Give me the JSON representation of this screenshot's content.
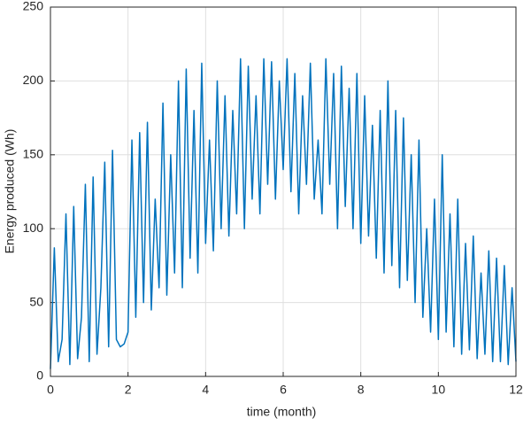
{
  "chart_data": {
    "type": "line",
    "xlabel": "time (month)",
    "ylabel": "Energy produced (Wh)",
    "xlim": [
      0,
      12
    ],
    "xticks": [
      0,
      2,
      4,
      6,
      8,
      10,
      12
    ],
    "ylim": [
      0,
      250
    ],
    "yticks": [
      0,
      50,
      100,
      150,
      200,
      250
    ],
    "grid": true,
    "x": [
      0,
      0.1,
      0.2,
      0.3,
      0.4,
      0.5,
      0.6,
      0.7,
      0.8,
      0.9,
      1,
      1.1,
      1.2,
      1.3,
      1.4,
      1.5,
      1.6,
      1.7,
      1.8,
      1.9,
      2,
      2.1,
      2.2,
      2.3,
      2.4,
      2.5,
      2.6,
      2.7,
      2.8,
      2.9,
      3,
      3.1,
      3.2,
      3.3,
      3.4,
      3.5,
      3.6,
      3.7,
      3.8,
      3.9,
      4,
      4.1,
      4.2,
      4.3,
      4.4,
      4.5,
      4.6,
      4.7,
      4.8,
      4.9,
      5,
      5.1,
      5.2,
      5.3,
      5.4,
      5.5,
      5.6,
      5.7,
      5.8,
      5.9,
      6,
      6.1,
      6.2,
      6.3,
      6.4,
      6.5,
      6.6,
      6.7,
      6.8,
      6.9,
      7,
      7.1,
      7.2,
      7.3,
      7.4,
      7.5,
      7.6,
      7.7,
      7.8,
      7.9,
      8,
      8.1,
      8.2,
      8.3,
      8.4,
      8.5,
      8.6,
      8.7,
      8.8,
      8.9,
      9,
      9.1,
      9.2,
      9.3,
      9.4,
      9.5,
      9.6,
      9.7,
      9.8,
      9.9,
      10,
      10.1,
      10.2,
      10.3,
      10.4,
      10.5,
      10.6,
      10.7,
      10.8,
      10.9,
      11,
      11.1,
      11.2,
      11.3,
      11.4,
      11.5,
      11.6,
      11.7,
      11.8,
      11.9,
      12
    ],
    "series": [
      {
        "color": "#0072bd",
        "values": [
          5,
          87,
          10,
          25,
          110,
          8,
          115,
          12,
          40,
          130,
          10,
          135,
          15,
          60,
          145,
          20,
          153,
          25,
          20,
          22,
          30,
          160,
          40,
          165,
          50,
          172,
          45,
          120,
          60,
          185,
          55,
          150,
          70,
          200,
          60,
          208,
          80,
          180,
          70,
          212,
          90,
          160,
          85,
          200,
          100,
          190,
          95,
          180,
          110,
          215,
          100,
          210,
          120,
          190,
          110,
          215,
          130,
          213,
          120,
          200,
          140,
          215,
          125,
          205,
          110,
          190,
          130,
          212,
          120,
          160,
          110,
          215,
          130,
          205,
          100,
          210,
          115,
          195,
          100,
          205,
          90,
          190,
          95,
          170,
          80,
          180,
          70,
          200,
          75,
          180,
          60,
          175,
          65,
          150,
          50,
          160,
          40,
          100,
          30,
          120,
          25,
          150,
          30,
          110,
          20,
          120,
          15,
          90,
          18,
          95,
          12,
          70,
          15,
          85,
          10,
          80,
          10,
          75,
          8,
          60,
          10
        ]
      }
    ]
  }
}
